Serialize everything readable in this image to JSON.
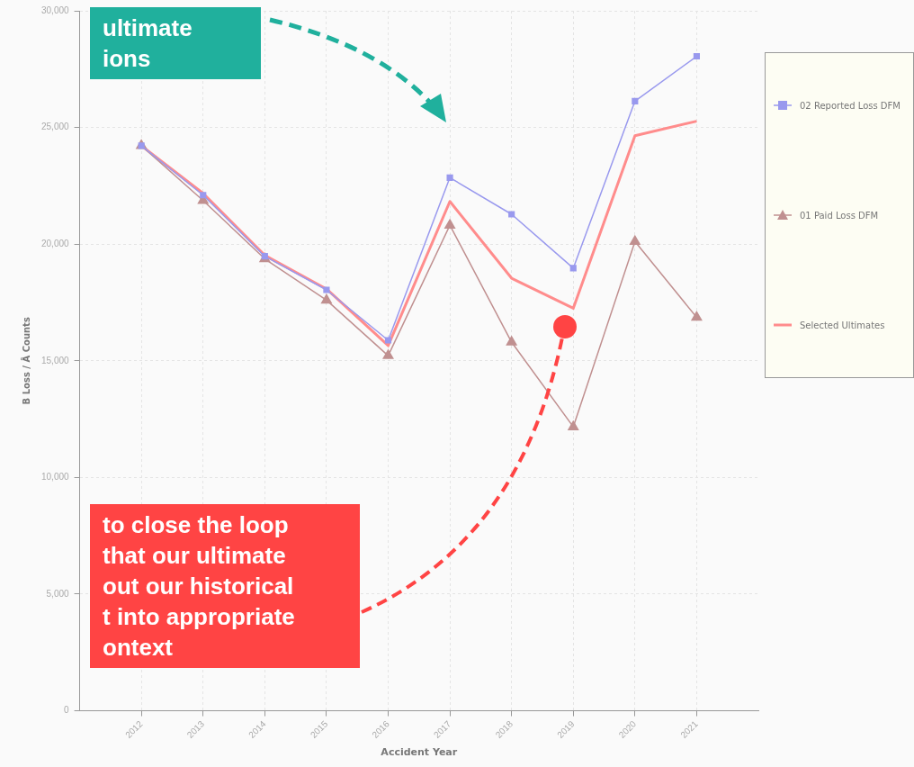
{
  "chart_data": {
    "type": "line",
    "xlabel": "Accident Year",
    "ylabel": "B Loss / Â Counts",
    "x": [
      2012,
      2013,
      2014,
      2015,
      2016,
      2017,
      2018,
      2019,
      2020,
      2021
    ],
    "xlim": [
      2011,
      2022
    ],
    "xticks": [
      2012,
      2013,
      2014,
      2015,
      2016,
      2017,
      2018,
      2019,
      2020,
      2021
    ],
    "ylim": [
      0,
      30000
    ],
    "yticks": [
      0,
      {
        "value": 5000,
        "label": "5,000"
      },
      {
        "value": 10000,
        "label": "10,000"
      },
      {
        "value": 15000,
        "label": "15,000"
      },
      {
        "value": 20000,
        "label": "20,000"
      },
      {
        "value": 25000,
        "label": "25,000"
      },
      {
        "value": 30000,
        "label": "30,000"
      }
    ],
    "series": [
      {
        "name": "02 Reported Loss DFM",
        "color": "#9999ee",
        "marker": "square",
        "values": [
          24220,
          22100,
          19480,
          18040,
          15880,
          22850,
          21280,
          18970,
          26130,
          28050
        ]
      },
      {
        "name": "01 Paid Loss DFM",
        "color": "#c09090",
        "marker": "triangle",
        "values": [
          24220,
          21870,
          19370,
          17600,
          15220,
          20810,
          15800,
          12170,
          20110,
          16860
        ]
      },
      {
        "name": "Selected Ultimates",
        "color": "#ff8c8c",
        "marker": "none",
        "values": [
          24220,
          22180,
          19520,
          18080,
          15650,
          21830,
          18540,
          17250,
          24650,
          25270
        ]
      }
    ],
    "grid": true,
    "legend": "right",
    "annotations": [
      "ultimate\nions",
      "to close the loop\nthat our ultimate\nout our historical\nt into appropriate\nontext"
    ]
  }
}
